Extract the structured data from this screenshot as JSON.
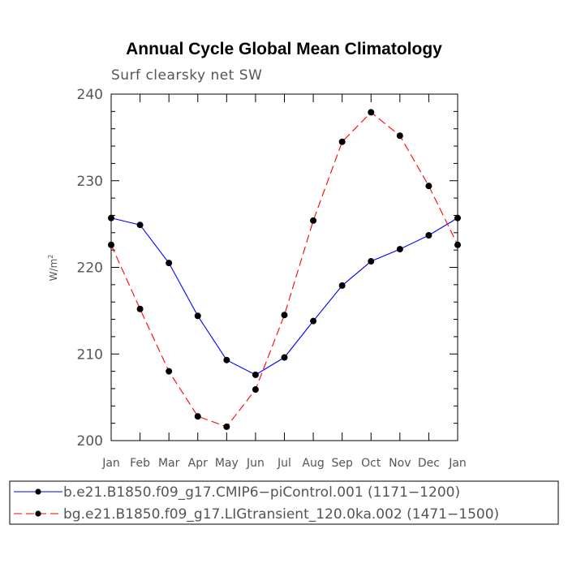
{
  "chart_data": {
    "type": "line",
    "title": "Annual Cycle Global Mean Climatology",
    "subtitle": "Surf clearsky net SW",
    "ylabel": "W/m",
    "ylabel_superscript": "2",
    "xlabel": "",
    "categories": [
      "Jan",
      "Feb",
      "Mar",
      "Apr",
      "May",
      "Jun",
      "Jul",
      "Aug",
      "Sep",
      "Oct",
      "Nov",
      "Dec",
      "Jan"
    ],
    "ylim": [
      200,
      240
    ],
    "yticks": [
      200,
      210,
      220,
      230,
      240
    ],
    "grid": false,
    "legend_position": "bottom",
    "series": [
      {
        "name": "b.e21.B1850.f09_g17.CMIP6−piControl.001 (1171−1200)",
        "color": "#0000ff",
        "dash": "solid",
        "marker": "filled-circle",
        "values": [
          225.7,
          224.9,
          220.5,
          214.4,
          209.3,
          207.6,
          209.6,
          213.8,
          217.9,
          220.7,
          222.1,
          223.7,
          225.7
        ]
      },
      {
        "name": "bg.e21.B1850.f09_g17.LIGtransient_120.0ka.002 (1471−1500)",
        "color": "#ff0000",
        "dash": "dashed",
        "marker": "filled-circle",
        "values": [
          222.6,
          215.2,
          208.0,
          202.8,
          201.6,
          205.9,
          214.5,
          225.4,
          234.5,
          237.9,
          235.2,
          229.4,
          222.6
        ]
      }
    ]
  }
}
